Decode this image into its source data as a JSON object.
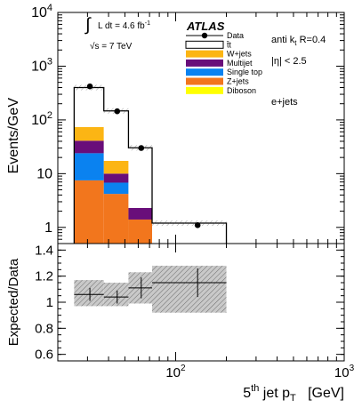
{
  "chart_data": [
    {
      "type": "bar",
      "panel": "main",
      "stacked": true,
      "ylabel": "Events/GeV",
      "yscale": "log",
      "ylim": [
        0.5,
        10000
      ],
      "x_scale": "log",
      "xlim": [
        20,
        1000
      ],
      "bins": [
        [
          25,
          37.5
        ],
        [
          37.5,
          52.5
        ],
        [
          52.5,
          72.5
        ],
        [
          72.5,
          200
        ]
      ],
      "yticks": [
        {
          "value": 1,
          "label": "1"
        },
        {
          "value": 10,
          "label": "10"
        },
        {
          "value": 100,
          "label": "10",
          "exp": "2"
        },
        {
          "value": 1000,
          "label": "10",
          "exp": "3"
        },
        {
          "value": 10000,
          "label": "10",
          "exp": "4"
        }
      ],
      "series": [
        {
          "name": "Z+jets",
          "color": "#f2761d",
          "values": [
            7.5,
            4.2,
            1.4,
            0
          ]
        },
        {
          "name": "Single top",
          "color": "#0a82f0",
          "values": [
            16.5,
            2.6,
            0,
            0
          ]
        },
        {
          "name": "Multijet",
          "color": "#690e7a",
          "values": [
            17,
            3.2,
            0.9,
            0
          ]
        },
        {
          "name": "W+jets",
          "color": "#fcb514",
          "values": [
            33,
            7.3,
            0,
            0
          ]
        },
        {
          "name": "Diboson",
          "color": "#ffff00",
          "values": [
            0,
            0,
            0,
            0
          ]
        },
        {
          "name": "t̄t",
          "color": "#ffffff",
          "values": [
            326,
            130,
            28,
            1.2
          ]
        }
      ],
      "data": {
        "name": "Data",
        "x": [
          31,
          45,
          62.5,
          135
        ],
        "y": [
          420,
          145,
          30,
          1.1
        ]
      },
      "legend": [
        "Data",
        "t̄t",
        "W+jets",
        "Multijet",
        "Single top",
        "Z+jets",
        "Diboson"
      ],
      "legend_placement": "top-center",
      "annotations": {
        "experiment": "ATLAS",
        "lumi_prefix": "∫",
        "lumi": "L dt = 4.6 fb",
        "lumi_exp": "-1",
        "energy": "√s = 7 TeV",
        "algo_a": "anti k",
        "algo_sub": "t",
        "algo_b": " R=0.4",
        "eta": "|η| < 2.5",
        "channel": "e+jets"
      }
    },
    {
      "type": "scatter",
      "panel": "ratio",
      "ylabel": "Expected/Data",
      "ylim": [
        0.55,
        1.45
      ],
      "yticks": [
        0.6,
        0.8,
        1,
        1.2,
        1.4
      ],
      "xlabel": "5th jet p_T  [GeV]",
      "xlabel_parts": {
        "pre": "5",
        "sup": "th",
        "mid": " jet p",
        "sub": "T",
        "post": "   [GeV]"
      },
      "xticks": [
        {
          "value": 100,
          "label": "10",
          "exp": "2"
        },
        {
          "value": 1000,
          "label": "10",
          "exp": "3"
        }
      ],
      "bins": [
        [
          25,
          37.5
        ],
        [
          37.5,
          52.5
        ],
        [
          52.5,
          72.5
        ],
        [
          72.5,
          200
        ]
      ],
      "ratio": [
        1.06,
        1.04,
        1.11,
        1.15
      ],
      "stat_err": [
        0.05,
        0.05,
        0.08,
        0.11
      ],
      "syst_band": [
        [
          0.97,
          1.17
        ],
        [
          0.97,
          1.15
        ],
        [
          0.99,
          1.23
        ],
        [
          0.92,
          1.28
        ]
      ]
    }
  ]
}
